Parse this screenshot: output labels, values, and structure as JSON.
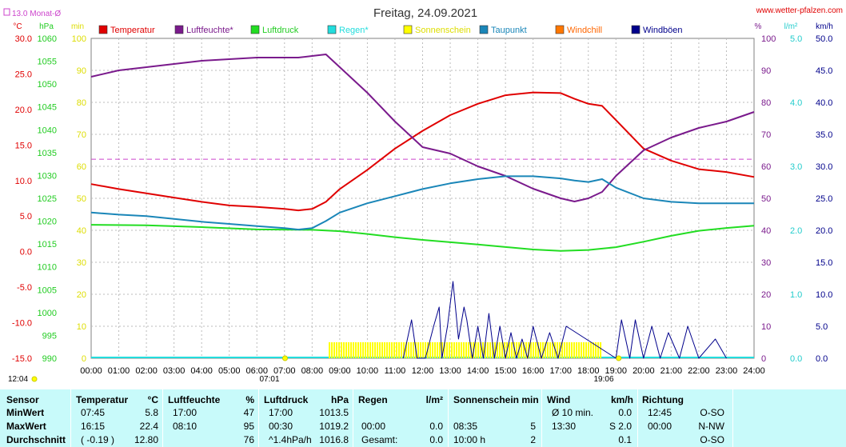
{
  "header": {
    "title": "Freitag, 24.09.2021",
    "site": "www.wetter-pfalzen.com",
    "monthly_avg_label": "13.0 Monat-Ø",
    "time_left": "12:04",
    "sunrise": "07:01",
    "sunset": "19:06"
  },
  "colors": {
    "temperature": "#e00000",
    "humidity": "#7a1a8c",
    "pressure": "#22dd22",
    "rain": "#22dddd",
    "sunshine": "#ffff00",
    "dewpoint": "#1a86b8",
    "windchill": "#ff7700",
    "gusts": "#00008b",
    "monthly_avg": "#cc44cc"
  },
  "chart_data": {
    "type": "line",
    "title": "Freitag, 24.09.2021",
    "x_ticks": [
      "00:00",
      "01:00",
      "02:00",
      "03:00",
      "04:00",
      "05:00",
      "06:00",
      "07:00",
      "08:00",
      "09:00",
      "10:00",
      "11:00",
      "12:00",
      "13:00",
      "14:00",
      "15:00",
      "16:00",
      "17:00",
      "18:00",
      "19:00",
      "20:00",
      "21:00",
      "22:00",
      "23:00",
      "24:00"
    ],
    "axes": [
      {
        "unit": "°C",
        "range": [
          -15,
          30
        ],
        "ticks": [
          "30.0",
          "25.0",
          "20.0",
          "15.0",
          "10.0",
          "5.0",
          "0.0",
          "-5.0",
          "-10.0",
          "-15.0"
        ]
      },
      {
        "unit": "hPa",
        "range": [
          990,
          1060
        ],
        "ticks": [
          "1060",
          "1055",
          "1050",
          "1045",
          "1040",
          "1035",
          "1030",
          "1025",
          "1020",
          "1015",
          "1010",
          "1005",
          "1000",
          "995",
          "990"
        ]
      },
      {
        "unit": "min",
        "range": [
          0,
          100
        ],
        "ticks": [
          "100",
          "90",
          "80",
          "70",
          "60",
          "50",
          "40",
          "30",
          "20",
          "10",
          "0"
        ]
      },
      {
        "unit": "%",
        "range": [
          0,
          100
        ],
        "ticks": [
          "100",
          "90",
          "80",
          "70",
          "60",
          "50",
          "40",
          "30",
          "20",
          "10",
          "0"
        ]
      },
      {
        "unit": "l/m²",
        "range": [
          0,
          5
        ],
        "ticks": [
          "5.0",
          "4.0",
          "3.0",
          "2.0",
          "1.0",
          "0.0"
        ]
      },
      {
        "unit": "km/h",
        "range": [
          0,
          50
        ],
        "ticks": [
          "50.0",
          "45.0",
          "40.0",
          "35.0",
          "30.0",
          "25.0",
          "20.0",
          "15.0",
          "10.0",
          "5.0",
          "0.0"
        ]
      }
    ],
    "legend": [
      "Temperatur",
      "Luftfeuchte*",
      "Luftdruck",
      "Regen*",
      "Sonnenschein",
      "Taupunkt",
      "Windchill",
      "Windböen"
    ],
    "monthly_avg_temp": 13.0,
    "series": [
      {
        "name": "Temperatur",
        "axis": "°C",
        "x": [
          0,
          1,
          2,
          3,
          4,
          5,
          6,
          7,
          7.5,
          8,
          8.5,
          9,
          10,
          11,
          12,
          13,
          14,
          15,
          16,
          17,
          17.5,
          18,
          18.5,
          19,
          20,
          21,
          22,
          23,
          24
        ],
        "y": [
          9.5,
          8.8,
          8.2,
          7.6,
          7.0,
          6.5,
          6.3,
          6.0,
          5.8,
          6.0,
          7.0,
          8.8,
          11.5,
          14.5,
          17.0,
          19.2,
          20.8,
          22.0,
          22.4,
          22.3,
          21.5,
          20.8,
          20.5,
          18.5,
          14.5,
          12.8,
          11.6,
          11.2,
          10.5
        ]
      },
      {
        "name": "Luftfeuchte*",
        "axis": "%",
        "x": [
          0,
          1,
          2,
          3,
          4,
          5,
          6,
          7,
          7.5,
          8,
          8.5,
          9,
          10,
          11,
          12,
          13,
          14,
          15,
          16,
          17,
          17.5,
          18,
          18.5,
          19,
          20,
          21,
          22,
          23,
          24
        ],
        "y": [
          88,
          90,
          91,
          92,
          93,
          93.5,
          94,
          94,
          94,
          94.5,
          95,
          91,
          83,
          74,
          66,
          64,
          60,
          57,
          53,
          50,
          49,
          50,
          52,
          57,
          65,
          69,
          72,
          74,
          77
        ]
      },
      {
        "name": "Luftdruck",
        "axis": "hPa",
        "x": [
          0,
          2,
          4,
          6,
          8,
          9,
          10,
          11,
          12,
          14,
          16,
          17,
          18,
          19,
          20,
          21,
          22,
          23,
          24
        ],
        "y": [
          1019.2,
          1019.1,
          1018.7,
          1018.2,
          1018.1,
          1017.8,
          1017.2,
          1016.5,
          1015.9,
          1014.9,
          1013.8,
          1013.5,
          1013.7,
          1014.3,
          1015.5,
          1016.8,
          1017.9,
          1018.5,
          1019.0
        ]
      },
      {
        "name": "Taupunkt",
        "axis": "°C",
        "x": [
          0,
          1,
          2,
          3,
          4,
          5,
          6,
          7,
          7.5,
          8,
          8.5,
          9,
          10,
          11,
          12,
          13,
          14,
          15,
          16,
          17,
          17.5,
          18,
          18.5,
          19,
          20,
          21,
          22,
          23,
          24
        ],
        "y": [
          5.5,
          5.2,
          5.0,
          4.6,
          4.2,
          3.9,
          3.6,
          3.3,
          3.1,
          3.3,
          4.3,
          5.5,
          6.8,
          7.8,
          8.8,
          9.6,
          10.2,
          10.6,
          10.6,
          10.3,
          10.0,
          9.8,
          10.2,
          9.0,
          7.5,
          7.0,
          6.8,
          6.8,
          6.8
        ]
      },
      {
        "name": "Sonnenschein",
        "axis": "min",
        "x": [
          8.6,
          18.5
        ],
        "y": [
          5,
          5
        ]
      },
      {
        "name": "Windböen",
        "axis": "km/h",
        "x": [
          11.3,
          11.6,
          11.8,
          12.1,
          12.4,
          12.6,
          12.7,
          12.9,
          13.1,
          13.3,
          13.5,
          13.6,
          13.8,
          14.0,
          14.2,
          14.4,
          14.6,
          14.8,
          15.0,
          15.2,
          15.4,
          15.6,
          15.8,
          16.0,
          16.3,
          16.6,
          16.9,
          17.2,
          19.0,
          19.2,
          19.5,
          19.7,
          20.0,
          20.3,
          20.6,
          20.9,
          21.3,
          21.6,
          22.0,
          22.6,
          23.0
        ],
        "y": [
          0,
          6,
          0,
          0,
          5,
          8,
          0,
          5,
          12,
          3,
          8,
          6,
          0,
          5,
          0,
          7,
          0,
          5,
          0,
          4,
          0,
          3,
          0,
          5,
          0,
          4,
          0,
          5,
          0,
          6,
          0,
          6,
          0,
          5,
          0,
          4,
          0,
          5,
          0,
          3,
          0
        ]
      }
    ]
  },
  "stats": {
    "headers": {
      "sensor": "Sensor",
      "temp": "Temperatur",
      "temp_unit": "°C",
      "hum": "Luftfeuchte",
      "hum_unit": "%",
      "press": "Luftdruck",
      "press_unit": "hPa",
      "rain": "Regen",
      "rain_unit": "l/m²",
      "sun": "Sonnenschein min",
      "wind": "Wind",
      "wind_unit": "km/h",
      "dir": "Richtung"
    },
    "rows": [
      {
        "label": "MinWert",
        "temp_time": "07:45",
        "temp_val": "5.8",
        "hum_time": "17:00",
        "hum_val": "47",
        "press_time": "17:00",
        "press_val": "1013.5",
        "rain_time": "",
        "rain_val": "",
        "sun_time": "",
        "sun_val": "",
        "wind_time": "Ø 10 min.",
        "wind_val": "0.0",
        "dir_time": "12:45",
        "dir_val": "O-SO"
      },
      {
        "label": "MaxWert",
        "temp_time": "16:15",
        "temp_val": "22.4",
        "hum_time": "08:10",
        "hum_val": "95",
        "press_time": "00:30",
        "press_val": "1019.2",
        "rain_time": "00:00",
        "rain_val": "0.0",
        "sun_time": "08:35",
        "sun_val": "5",
        "wind_time": "13:30",
        "wind_val": "S 2.0",
        "dir_time": "00:00",
        "dir_val": "N-NW"
      },
      {
        "label": "Durchschnitt",
        "temp_time": "( -0.19 )",
        "temp_val": "12.80",
        "hum_time": "",
        "hum_val": "76",
        "press_time": "^1.4hPa/h",
        "press_val": "1016.8",
        "rain_time": "Gesamt:",
        "rain_val": "0.0",
        "sun_time": "10:00 h",
        "sun_val": "2",
        "wind_time": "",
        "wind_val": "0.1",
        "dir_time": "",
        "dir_val": "O-SO"
      }
    ]
  }
}
